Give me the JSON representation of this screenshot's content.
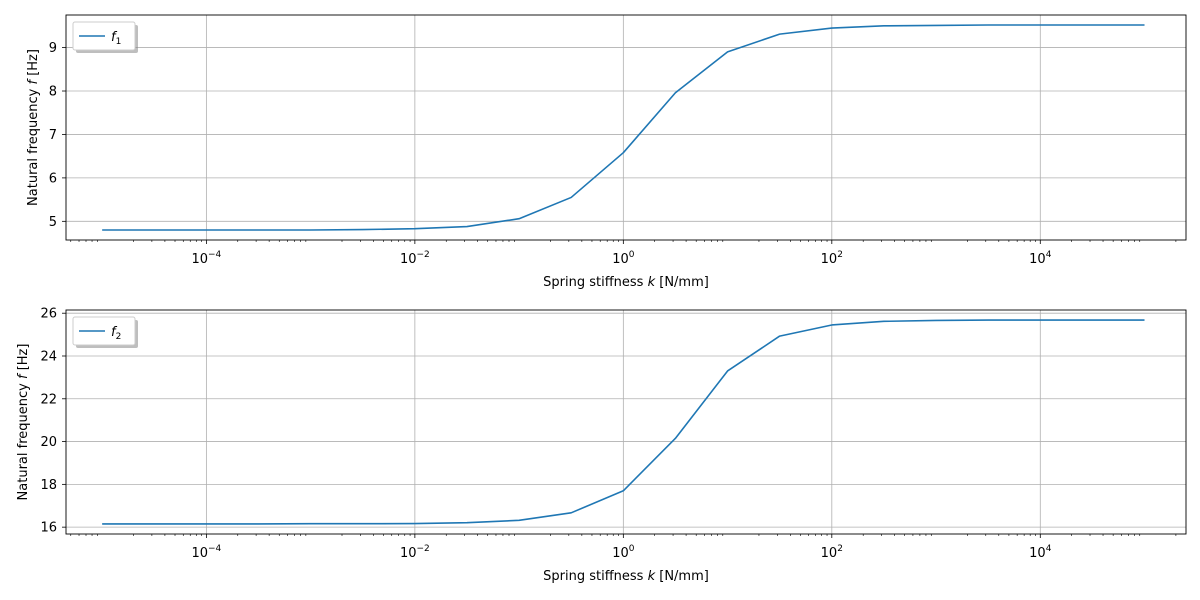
{
  "chart_data": [
    {
      "type": "line",
      "xscale": "log",
      "xlabel": "Spring stiffness k [N/mm]",
      "ylabel": "Natural frequency f [Hz]",
      "xlim": [
        4.5e-06,
        250000
      ],
      "ylim": [
        4.57,
        9.75
      ],
      "xticks": [
        {
          "value": 0.0001,
          "base": "10",
          "exp": "−4"
        },
        {
          "value": 0.01,
          "base": "10",
          "exp": "−2"
        },
        {
          "value": 1,
          "base": "10",
          "exp": "0"
        },
        {
          "value": 100,
          "base": "10",
          "exp": "2"
        },
        {
          "value": 10000,
          "base": "10",
          "exp": "4"
        }
      ],
      "yticks": [
        "5",
        "6",
        "7",
        "8",
        "9"
      ],
      "grid": true,
      "legend_position": "upper-left",
      "series": [
        {
          "name": "f1",
          "name_base": "f",
          "name_sub": "1",
          "color": "#1f77b4",
          "x": [
            1e-05,
            3.16e-05,
            0.0001,
            0.000316,
            0.001,
            0.00316,
            0.01,
            0.0316,
            0.1,
            0.316,
            1,
            3.16,
            10,
            31.6,
            100,
            316,
            1000,
            3160,
            10000,
            31600,
            100000
          ],
          "y": [
            4.8,
            4.8,
            4.8,
            4.8,
            4.8,
            4.81,
            4.83,
            4.88,
            5.06,
            5.55,
            6.58,
            7.96,
            8.9,
            9.31,
            9.45,
            9.5,
            9.51,
            9.52,
            9.52,
            9.52,
            9.52
          ]
        }
      ]
    },
    {
      "type": "line",
      "xscale": "log",
      "xlabel": "Spring stiffness k [N/mm]",
      "ylabel": "Natural frequency f [Hz]",
      "xlim": [
        4.5e-06,
        250000
      ],
      "ylim": [
        15.68,
        26.15
      ],
      "xticks": [
        {
          "value": 0.0001,
          "base": "10",
          "exp": "−4"
        },
        {
          "value": 0.01,
          "base": "10",
          "exp": "−2"
        },
        {
          "value": 1,
          "base": "10",
          "exp": "0"
        },
        {
          "value": 100,
          "base": "10",
          "exp": "2"
        },
        {
          "value": 10000,
          "base": "10",
          "exp": "4"
        }
      ],
      "yticks": [
        "16",
        "18",
        "20",
        "22",
        "24",
        "26"
      ],
      "grid": true,
      "legend_position": "upper-left",
      "series": [
        {
          "name": "f2",
          "name_base": "f",
          "name_sub": "2",
          "color": "#1f77b4",
          "x": [
            1e-05,
            3.16e-05,
            0.0001,
            0.000316,
            0.001,
            0.00316,
            0.01,
            0.0316,
            0.1,
            0.316,
            1,
            3.16,
            10,
            31.6,
            100,
            316,
            1000,
            3160,
            10000,
            31600,
            100000
          ],
          "y": [
            16.15,
            16.15,
            16.15,
            16.15,
            16.16,
            16.16,
            16.17,
            16.21,
            16.32,
            16.67,
            17.7,
            20.15,
            23.3,
            24.93,
            25.45,
            25.62,
            25.66,
            25.68,
            25.68,
            25.68,
            25.68
          ]
        }
      ]
    }
  ]
}
